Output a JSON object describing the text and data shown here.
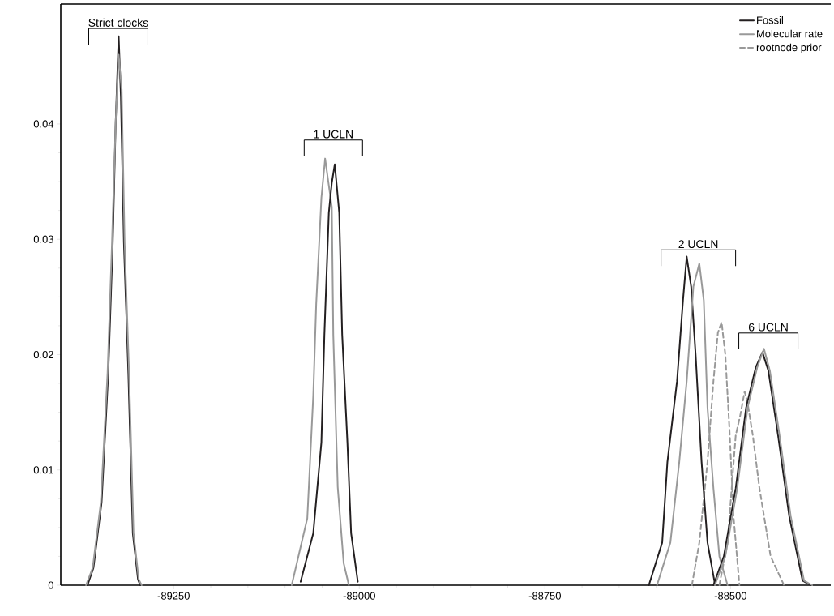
{
  "chart_data": {
    "type": "line",
    "xlim": [
      -89402,
      -88365
    ],
    "ylim": [
      0,
      0.0504
    ],
    "xticks": [
      -89250,
      -89000,
      -88750,
      -88500
    ],
    "yticks": [
      0,
      0.01,
      0.02,
      0.03,
      0.04
    ],
    "legend": "top right",
    "grid": false,
    "marker": "none",
    "series": [
      {
        "name": "Fossil",
        "color": "#231f20",
        "line_style": "solid",
        "x": [
          -89366,
          -89358,
          -89347,
          -89338,
          -89332,
          -89328,
          -89324,
          -89321,
          -89317,
          -89311,
          -89305,
          -89298,
          -89295
        ],
        "values": [
          0,
          0.0015,
          0.0072,
          0.0184,
          0.0297,
          0.0402,
          0.0476,
          0.0423,
          0.0297,
          0.0184,
          0.0045,
          0.0005,
          0
        ]
      },
      {
        "name": "Molecular rate",
        "color": "#999999",
        "line_style": "solid",
        "x": [
          -89368,
          -89359,
          -89348,
          -89339,
          -89333,
          -89328,
          -89324,
          -89320,
          -89316,
          -89310,
          -89304,
          -89297,
          -89293
        ],
        "values": [
          0,
          0.0015,
          0.0072,
          0.0184,
          0.0297,
          0.0402,
          0.046,
          0.043,
          0.0297,
          0.0184,
          0.0045,
          0.0005,
          0
        ]
      },
      {
        "name": "rootnode prior",
        "color": "#999999",
        "line_style": "dashed",
        "x": [
          -88552,
          -88542,
          -88531,
          -88523,
          -88517,
          -88512,
          -88507,
          -88501,
          -88496,
          -88488
        ],
        "values": [
          0,
          0.0037,
          0.0107,
          0.0177,
          0.0219,
          0.0228,
          0.02,
          0.013,
          0.006,
          0
        ]
      },
      {
        "color": "#999999",
        "line_style": "solid",
        "x": [
          -89091,
          -89070,
          -89062,
          -89058,
          -89051,
          -89046,
          -89037,
          -89035,
          -89029,
          -89021,
          -89014
        ],
        "values": [
          0,
          0.0058,
          0.0164,
          0.0244,
          0.0336,
          0.037,
          0.0328,
          0.0217,
          0.0085,
          0.0019,
          0
        ]
      },
      {
        "color": "#231f20",
        "line_style": "solid",
        "x": [
          -89079,
          -89062,
          -89051,
          -89047,
          -89041,
          -89037,
          -89033,
          -89027,
          -89023,
          -89016,
          -89011,
          -89002
        ],
        "values": [
          0.0003,
          0.0045,
          0.0124,
          0.0217,
          0.0323,
          0.0349,
          0.0365,
          0.0323,
          0.0217,
          0.0124,
          0.0045,
          0.0003
        ]
      },
      {
        "color": "#231f20",
        "line_style": "solid",
        "x": [
          -88610,
          -88592,
          -88585,
          -88572,
          -88564,
          -88559,
          -88553,
          -88547,
          -88539,
          -88531,
          -88521
        ],
        "values": [
          0,
          0.0037,
          0.0107,
          0.0177,
          0.0247,
          0.0285,
          0.0259,
          0.02,
          0.0107,
          0.0037,
          0.0001
        ]
      },
      {
        "color": "#999999",
        "line_style": "solid",
        "x": [
          -88599,
          -88581,
          -88569,
          -88559,
          -88550,
          -88542,
          -88536,
          -88531,
          -88523,
          -88515,
          -88504
        ],
        "values": [
          0,
          0.0037,
          0.0107,
          0.0177,
          0.0259,
          0.0279,
          0.0247,
          0.0154,
          0.0084,
          0.0025,
          0
        ]
      },
      {
        "color": "#999999",
        "line_style": "dashed",
        "x": [
          -88515,
          -88504,
          -88493,
          -88487,
          -88481,
          -88477,
          -88470,
          -88461,
          -88446,
          -88428
        ],
        "values": [
          0,
          0.0037,
          0.013,
          0.0147,
          0.0168,
          0.0158,
          0.013,
          0.0084,
          0.0025,
          0
        ]
      },
      {
        "color": "#231f20",
        "line_style": "solid",
        "x": [
          -88523,
          -88509,
          -88493,
          -88479,
          -88466,
          -88457,
          -88449,
          -88436,
          -88421,
          -88403,
          -88392
        ],
        "values": [
          0,
          0.0025,
          0.0084,
          0.0154,
          0.0189,
          0.0202,
          0.0186,
          0.013,
          0.006,
          0.0004,
          0
        ]
      },
      {
        "color": "#999999",
        "line_style": "solid",
        "x": [
          -88521,
          -88507,
          -88491,
          -88477,
          -88464,
          -88455,
          -88447,
          -88434,
          -88419,
          -88401,
          -88390
        ],
        "values": [
          0,
          0.0025,
          0.0084,
          0.0154,
          0.0189,
          0.0205,
          0.0186,
          0.013,
          0.006,
          0.0004,
          0
        ]
      }
    ],
    "annotations": [
      "Strict clocks",
      "1 UCLN",
      "2 UCLN",
      "6 UCLN"
    ]
  }
}
